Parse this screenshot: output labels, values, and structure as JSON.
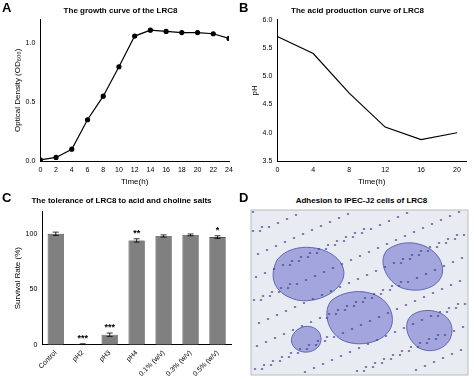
{
  "chart_data": [
    {
      "panel": "A",
      "type": "line",
      "title": "The growth curve of the LRC8",
      "x_label": "Time(h)",
      "y_label": "Optical Density (OD₆₀₀)",
      "x": [
        0,
        2,
        4,
        6,
        8,
        10,
        12,
        14,
        16,
        18,
        20,
        22,
        24
      ],
      "values": [
        0.01,
        0.03,
        0.1,
        0.35,
        0.55,
        0.8,
        1.06,
        1.11,
        1.1,
        1.09,
        1.09,
        1.08,
        1.04
      ],
      "color": "#000000",
      "marker": "circle",
      "line_style": "solid",
      "xlim": [
        0,
        24
      ],
      "xticks": [
        0,
        2,
        4,
        6,
        8,
        10,
        12,
        14,
        16,
        18,
        20,
        22,
        24
      ],
      "ylim": [
        0,
        1.2
      ],
      "yticks": [
        {
          "value": 0,
          "label": "0.0"
        },
        {
          "value": 0.5,
          "label": "0.5"
        },
        {
          "value": 1,
          "label": "1.0"
        }
      ],
      "grid": false
    },
    {
      "panel": "B",
      "type": "line",
      "title": "The acid production curve of LRC8",
      "x_label": "Time(h)",
      "y_label": "pH",
      "x": [
        0,
        4,
        8,
        12,
        16,
        20
      ],
      "values": [
        5.7,
        5.4,
        4.7,
        4.1,
        3.88,
        4.0
      ],
      "color": "#000000",
      "marker": "none",
      "line_style": "solid",
      "xlim": [
        0,
        21
      ],
      "xticks": [
        0,
        4,
        8,
        12,
        16,
        20
      ],
      "ylim": [
        3.5,
        6.0
      ],
      "yticks": [
        {
          "value": 3.5,
          "label": "3.5"
        },
        {
          "value": 4,
          "label": "4.0"
        },
        {
          "value": 4.5,
          "label": "4.5"
        },
        {
          "value": 5,
          "label": "5.0"
        },
        {
          "value": 5.5,
          "label": "5.5"
        },
        {
          "value": 6,
          "label": "6.0"
        }
      ],
      "grid": false
    },
    {
      "panel": "C",
      "type": "bar",
      "title": "The tolerance of LRC8 to acid and choline salts",
      "y_label": "Survival Rate (%)",
      "categories": [
        "Control",
        "pH2",
        "pH3",
        "pH4",
        "0.1% (w/v)",
        "0.3% (w/v)",
        "0.5% (w/v)"
      ],
      "values": [
        100,
        0.5,
        9,
        94,
        98,
        99,
        97
      ],
      "errors": [
        1.5,
        0.3,
        1.5,
        1.5,
        1,
        0.8,
        1.2
      ],
      "significance": [
        null,
        "***",
        "***",
        "**",
        null,
        null,
        "*"
      ],
      "color": "#808080",
      "ylim": [
        0,
        120
      ],
      "yticks": [
        0,
        50,
        100
      ],
      "grid": false
    }
  ],
  "image_panel": {
    "panel": "D",
    "title": "Adhesion to IPEC-J2 cells of LRC8"
  }
}
